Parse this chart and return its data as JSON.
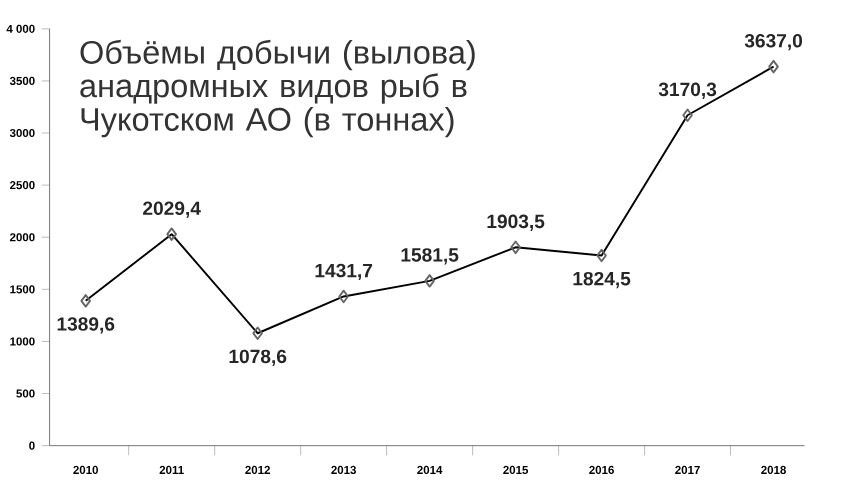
{
  "chart_data": {
    "type": "line",
    "title": "Объёмы добычи (вылова) анадромных видов рыб в Чукотском АО (в тоннах)",
    "categories": [
      "2010",
      "2011",
      "2012",
      "2013",
      "2014",
      "2015",
      "2016",
      "2017",
      "2018"
    ],
    "values": [
      1389.6,
      2029.4,
      1078.6,
      1431.7,
      1581.5,
      1903.5,
      1824.5,
      3170.3,
      3637.0
    ],
    "value_labels": [
      "1389,6",
      "2029,4",
      "1078,6",
      "1431,7",
      "1581,5",
      "1903,5",
      "1824,5",
      "3170,3",
      "3637,0"
    ],
    "color": "#000000",
    "marker": "diamond",
    "grid": false,
    "ylim": [
      0,
      4000
    ],
    "yticks": [
      0,
      500,
      1000,
      1500,
      2000,
      2500,
      3000,
      3500,
      {
        "value": 4000,
        "label": "4 000"
      }
    ]
  }
}
